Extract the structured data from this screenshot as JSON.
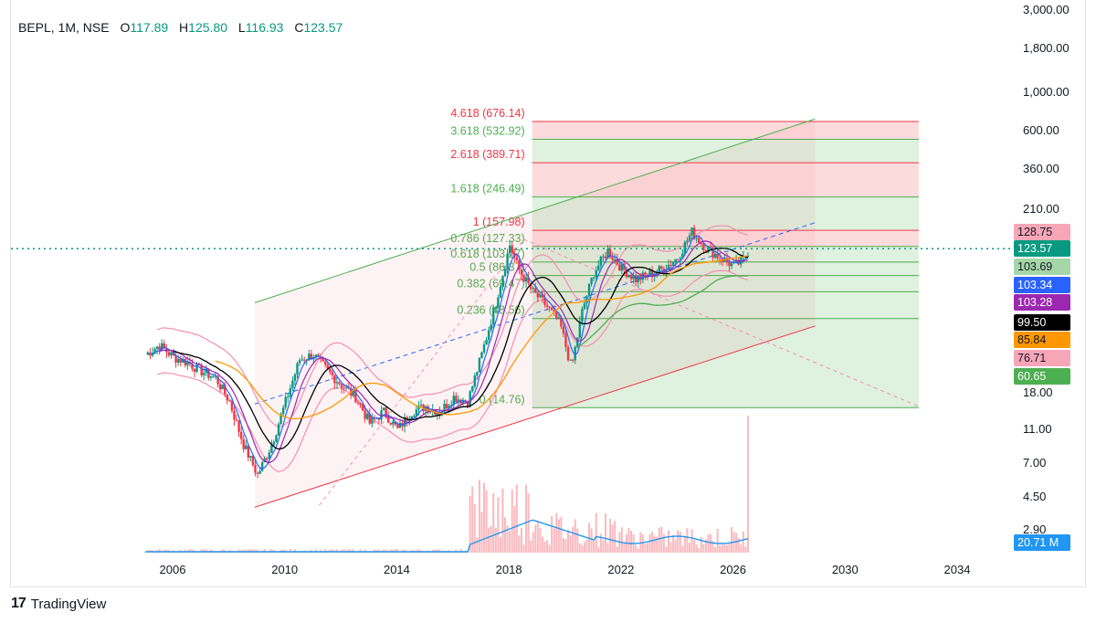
{
  "header": {
    "symbol": "BEPL, 1M, NSE",
    "o_label": "O",
    "o_value": "117.89",
    "h_label": "H",
    "h_value": "125.80",
    "l_label": "L",
    "l_value": "116.93",
    "c_label": "C",
    "c_value": "123.57"
  },
  "footer": {
    "brand": "TradingView"
  },
  "colors": {
    "up": "#089981",
    "down": "#f23645",
    "fib_red": "#f23645",
    "fib_green": "#4caf50",
    "ma_black": "#000000",
    "ma_orange": "#ff9800",
    "ma_blue": "#2962ff",
    "ma_purple": "#9c27b0",
    "bollinger": "#f48fb1",
    "volume_line": "#2196f3"
  },
  "chart_data": {
    "type": "candlestick",
    "y_scale": "log",
    "y_axis_labels": [
      "3,000.00",
      "1,800.00",
      "1,000.00",
      "600.00",
      "360.00",
      "210.00",
      "18.00",
      "11.00",
      "7.00",
      "4.50",
      "2.90"
    ],
    "x_axis_labels": [
      "2006",
      "2010",
      "2014",
      "2018",
      "2022",
      "2026",
      "2030",
      "2034"
    ],
    "price_tags": [
      {
        "value": "128.75",
        "bg": "#f7a6b8",
        "fg": "#131722"
      },
      {
        "value": "123.57",
        "bg": "#089981",
        "fg": "#ffffff"
      },
      {
        "value": "103.69",
        "bg": "#a5d6a7",
        "fg": "#131722"
      },
      {
        "value": "103.34",
        "bg": "#2962ff",
        "fg": "#ffffff"
      },
      {
        "value": "103.28",
        "bg": "#9c27b0",
        "fg": "#ffffff"
      },
      {
        "value": "99.50",
        "bg": "#000000",
        "fg": "#ffffff"
      },
      {
        "value": "85.84",
        "bg": "#ff9800",
        "fg": "#131722"
      },
      {
        "value": "76.71",
        "bg": "#f7a6b8",
        "fg": "#131722"
      },
      {
        "value": "60.65",
        "bg": "#4caf50",
        "fg": "#ffffff"
      },
      {
        "value": "20.71 M",
        "bg": "#2196f3",
        "fg": "#ffffff"
      }
    ],
    "fib_levels": [
      {
        "label": "4.618 (676.14)",
        "ratio": 4.618,
        "price": 676.14,
        "color": "#f23645"
      },
      {
        "label": "3.618 (532.92)",
        "ratio": 3.618,
        "price": 532.92,
        "color": "#4caf50"
      },
      {
        "label": "2.618 (389.71)",
        "ratio": 2.618,
        "price": 389.71,
        "color": "#f23645"
      },
      {
        "label": "1.618 (246.49)",
        "ratio": 1.618,
        "price": 246.49,
        "color": "#4caf50"
      },
      {
        "label": "1 (157.98)",
        "ratio": 1,
        "price": 157.98,
        "color": "#f23645"
      },
      {
        "label": "0.786 (127.33)",
        "ratio": 0.786,
        "price": 127.33,
        "color": "#4caf50"
      },
      {
        "label": "0.618 (103.27)",
        "ratio": 0.618,
        "price": 103.27,
        "color": "#4caf50"
      },
      {
        "label": "0.5 (86.37)",
        "ratio": 0.5,
        "price": 86.37,
        "color": "#4caf50"
      },
      {
        "label": "0.382 (69.47)",
        "ratio": 0.382,
        "price": 69.47,
        "color": "#4caf50"
      },
      {
        "label": "0.236 (48.56)",
        "ratio": 0.236,
        "price": 48.56,
        "color": "#4caf50"
      },
      {
        "label": "0 (14.76)",
        "ratio": 0,
        "price": 14.76,
        "color": "#4caf50"
      }
    ],
    "last_close": 123.57
  }
}
